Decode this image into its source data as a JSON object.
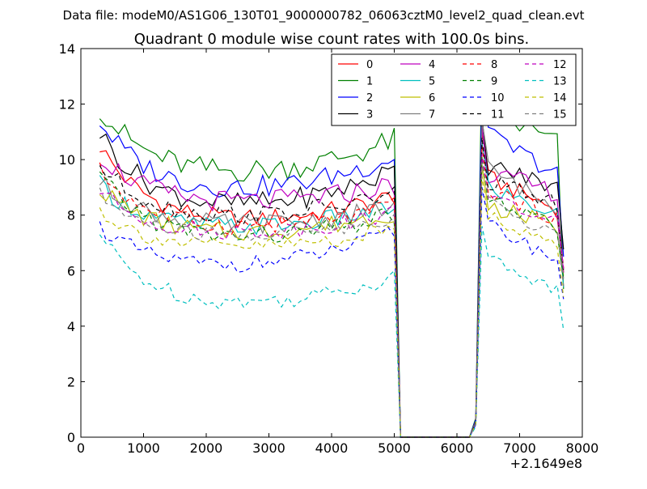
{
  "chart_data": {
    "type": "line",
    "suptitle": "Data file: modeM0/AS1G06_130T01_9000000782_06063cztM0_level2_quad_clean.evt",
    "title": "Quadrant 0 module wise count rates with 100.0s bins.",
    "xlabel": "",
    "ylabel": "",
    "x_offset_label": "+2.1649e8",
    "xlim": [
      0,
      8000
    ],
    "ylim": [
      0,
      14
    ],
    "xticks": [
      0,
      1000,
      2000,
      3000,
      4000,
      5000,
      6000,
      7000,
      8000
    ],
    "yticks": [
      0,
      2,
      4,
      6,
      8,
      10,
      12,
      14
    ],
    "grid": false,
    "legend_position": "top-right",
    "legend_columns": 4,
    "x": [
      300,
      400,
      500,
      600,
      700,
      800,
      900,
      1000,
      1100,
      1200,
      1300,
      1400,
      1500,
      1600,
      1700,
      1800,
      1900,
      2000,
      2100,
      2200,
      2300,
      2400,
      2500,
      2600,
      2700,
      2800,
      2900,
      3000,
      3100,
      3200,
      3300,
      3400,
      3500,
      3600,
      3700,
      3800,
      3900,
      4000,
      4100,
      4200,
      4300,
      4400,
      4500,
      4600,
      4700,
      4800,
      4900,
      5000,
      5100,
      5200,
      5300,
      5400,
      5500,
      5600,
      5700,
      5800,
      5900,
      6000,
      6100,
      6200,
      6300,
      6400,
      6500,
      6600,
      6700,
      6800,
      6900,
      7000,
      7100,
      7200,
      7300,
      7400,
      7500,
      7600,
      7700
    ],
    "gap": [
      5100,
      6200
    ],
    "series": [
      {
        "name": "0",
        "color": "#ff0000",
        "dash": "solid",
        "start": 10.5,
        "floor": 7.6,
        "rise": 1.1,
        "after_peak": 11.0,
        "after_end": 8.2,
        "final": 5.8,
        "noise": 0.35,
        "gap_value": 0.0
      },
      {
        "name": "1",
        "color": "#008000",
        "dash": "solid",
        "start": 11.9,
        "floor": 9.3,
        "rise": 1.4,
        "after_peak": 13.8,
        "after_end": 10.6,
        "final": 5.5,
        "noise": 0.45,
        "gap_value": 0.0
      },
      {
        "name": "2",
        "color": "#0000ff",
        "dash": "solid",
        "start": 11.4,
        "floor": 8.7,
        "rise": 1.4,
        "after_peak": 12.8,
        "after_end": 9.5,
        "final": 6.2,
        "noise": 0.4,
        "gap_value": 0.0
      },
      {
        "name": "3",
        "color": "#000000",
        "dash": "solid",
        "start": 11.0,
        "floor": 8.1,
        "rise": 1.5,
        "after_peak": 11.5,
        "after_end": 9.0,
        "final": 6.6,
        "noise": 0.4,
        "gap_value": 0.0
      },
      {
        "name": "4",
        "color": "#bf00bf",
        "dash": "solid",
        "start": 10.2,
        "floor": 8.3,
        "rise": 0.8,
        "after_peak": 11.2,
        "after_end": 8.8,
        "final": 6.0,
        "noise": 0.4,
        "gap_value": 0.0
      },
      {
        "name": "5",
        "color": "#00bfbf",
        "dash": "solid",
        "start": 9.1,
        "floor": 7.4,
        "rise": 0.9,
        "after_peak": 10.6,
        "after_end": 8.0,
        "final": 5.5,
        "noise": 0.35,
        "gap_value": 0.0
      },
      {
        "name": "6",
        "color": "#bfbf00",
        "dash": "solid",
        "start": 9.0,
        "floor": 7.2,
        "rise": 0.9,
        "after_peak": 9.8,
        "after_end": 7.6,
        "final": 5.6,
        "noise": 0.35,
        "gap_value": 0.0
      },
      {
        "name": "7",
        "color": "#808080",
        "dash": "solid",
        "start": 9.2,
        "floor": 7.5,
        "rise": 0.8,
        "after_peak": 11.4,
        "after_end": 8.2,
        "final": 6.0,
        "noise": 0.35,
        "gap_value": 0.0
      },
      {
        "name": "8",
        "color": "#ff0000",
        "dash": "dashed",
        "start": 9.6,
        "floor": 7.4,
        "rise": 0.9,
        "after_peak": 10.5,
        "after_end": 7.9,
        "final": 5.9,
        "noise": 0.35,
        "gap_value": 0.0
      },
      {
        "name": "9",
        "color": "#008000",
        "dash": "dashed",
        "start": 9.4,
        "floor": 7.0,
        "rise": 1.0,
        "after_peak": 10.1,
        "after_end": 7.5,
        "final": 5.6,
        "noise": 0.35,
        "gap_value": 0.0
      },
      {
        "name": "10",
        "color": "#0000ff",
        "dash": "dashed",
        "start": 7.6,
        "floor": 6.0,
        "rise": 1.4,
        "after_peak": 9.0,
        "after_end": 6.4,
        "final": 5.0,
        "noise": 0.3,
        "gap_value": 0.0
      },
      {
        "name": "11",
        "color": "#000000",
        "dash": "dashed",
        "start": 9.8,
        "floor": 7.8,
        "rise": 1.0,
        "after_peak": 10.8,
        "after_end": 8.4,
        "final": 6.3,
        "noise": 0.35,
        "gap_value": 0.0
      },
      {
        "name": "12",
        "color": "#bf00bf",
        "dash": "dashed",
        "start": 8.9,
        "floor": 7.2,
        "rise": 0.9,
        "after_peak": 10.2,
        "after_end": 7.7,
        "final": 5.8,
        "noise": 0.3,
        "gap_value": 0.0
      },
      {
        "name": "13",
        "color": "#00bfbf",
        "dash": "dashed",
        "start": 7.3,
        "floor": 4.6,
        "rise": 1.2,
        "after_peak": 7.6,
        "after_end": 5.3,
        "final": 3.7,
        "noise": 0.3,
        "gap_value": 0.0
      },
      {
        "name": "14",
        "color": "#bfbf00",
        "dash": "dashed",
        "start": 8.2,
        "floor": 6.7,
        "rise": 0.8,
        "after_peak": 9.4,
        "after_end": 6.9,
        "final": 5.0,
        "noise": 0.3,
        "gap_value": 0.0
      },
      {
        "name": "15",
        "color": "#808080",
        "dash": "dashed",
        "start": 8.7,
        "floor": 7.1,
        "rise": 0.8,
        "after_peak": 9.9,
        "after_end": 7.3,
        "final": 5.4,
        "noise": 0.3,
        "gap_value": 0.0
      }
    ]
  }
}
